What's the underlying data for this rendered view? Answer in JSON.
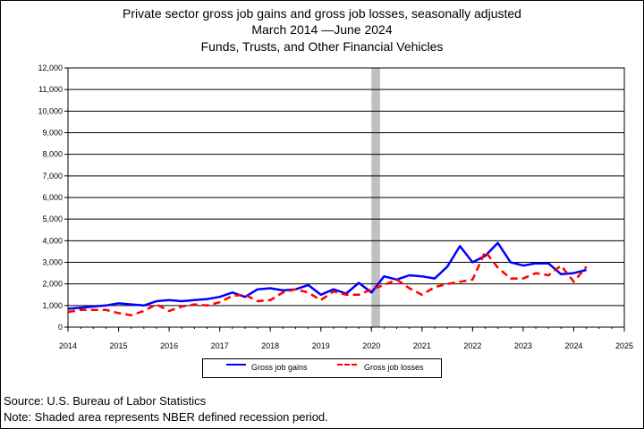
{
  "title": {
    "line1": "Private sector gross job gains and gross job losses, seasonally adjusted",
    "line2": "March 2014  —June 2024",
    "line3": "Funds, Trusts, and Other Financial Vehicles"
  },
  "legend": {
    "gains": "Gross job gains",
    "losses": "Gross job losses"
  },
  "footer": {
    "source": "Source: U.S. Bureau of Labor Statistics",
    "note": "Note: Shaded area represents NBER defined recession period."
  },
  "chart_data": {
    "type": "line",
    "xlim": [
      2014,
      2025
    ],
    "ylim": [
      0,
      12000
    ],
    "x_ticks": [
      "2014",
      "2015",
      "2016",
      "2017",
      "2018",
      "2019",
      "2020",
      "2021",
      "2022",
      "2023",
      "2024",
      "2025"
    ],
    "y_ticks": [
      "0",
      "1,000",
      "2,000",
      "3,000",
      "4,000",
      "5,000",
      "6,000",
      "7,000",
      "8,000",
      "9,000",
      "10,000",
      "11,000",
      "12,000"
    ],
    "grid": "horizontal",
    "legend_position": "bottom",
    "recession": [
      2020.0,
      2020.17
    ],
    "colors": {
      "gains": "#0000ff",
      "losses": "#ff0000",
      "recession": "#c0c0c0"
    },
    "series": [
      {
        "key": "gains",
        "name": "Gross job gains",
        "x": [
          2014.0,
          2014.25,
          2014.5,
          2014.75,
          2015.0,
          2015.25,
          2015.5,
          2015.75,
          2016.0,
          2016.25,
          2016.5,
          2016.75,
          2017.0,
          2017.25,
          2017.5,
          2017.75,
          2018.0,
          2018.25,
          2018.5,
          2018.75,
          2019.0,
          2019.25,
          2019.5,
          2019.75,
          2020.0,
          2020.25,
          2020.5,
          2020.75,
          2021.0,
          2021.25,
          2021.5,
          2021.75,
          2022.0,
          2022.25,
          2022.5,
          2022.75,
          2023.0,
          2023.25,
          2023.5,
          2023.75,
          2024.0,
          2024.25
        ],
        "values": [
          850,
          900,
          950,
          1000,
          1100,
          1050,
          1000,
          1200,
          1250,
          1200,
          1250,
          1300,
          1400,
          1600,
          1400,
          1750,
          1800,
          1700,
          1750,
          1950,
          1500,
          1750,
          1550,
          2050,
          1600,
          2350,
          2200,
          2400,
          2350,
          2250,
          2800,
          3750,
          3000,
          3300,
          3900,
          3000,
          2850,
          2950,
          2950,
          2450,
          2500,
          2650
        ]
      },
      {
        "key": "losses",
        "name": "Gross job losses",
        "x": [
          2014.0,
          2014.25,
          2014.5,
          2014.75,
          2015.0,
          2015.25,
          2015.5,
          2015.75,
          2016.0,
          2016.25,
          2016.5,
          2016.75,
          2017.0,
          2017.25,
          2017.5,
          2017.75,
          2018.0,
          2018.25,
          2018.5,
          2018.75,
          2019.0,
          2019.25,
          2019.5,
          2019.75,
          2020.0,
          2020.25,
          2020.5,
          2020.75,
          2021.0,
          2021.25,
          2021.5,
          2021.75,
          2022.0,
          2022.25,
          2022.5,
          2022.75,
          2023.0,
          2023.25,
          2023.5,
          2023.75,
          2024.0,
          2024.25
        ],
        "values": [
          700,
          800,
          800,
          800,
          650,
          550,
          750,
          1050,
          750,
          950,
          1050,
          1000,
          1150,
          1450,
          1500,
          1200,
          1250,
          1600,
          1750,
          1600,
          1250,
          1650,
          1500,
          1500,
          1750,
          1950,
          2200,
          1800,
          1500,
          1850,
          2000,
          2100,
          2200,
          3500,
          2750,
          2250,
          2250,
          2500,
          2400,
          2850,
          2100,
          2800
        ]
      }
    ]
  }
}
